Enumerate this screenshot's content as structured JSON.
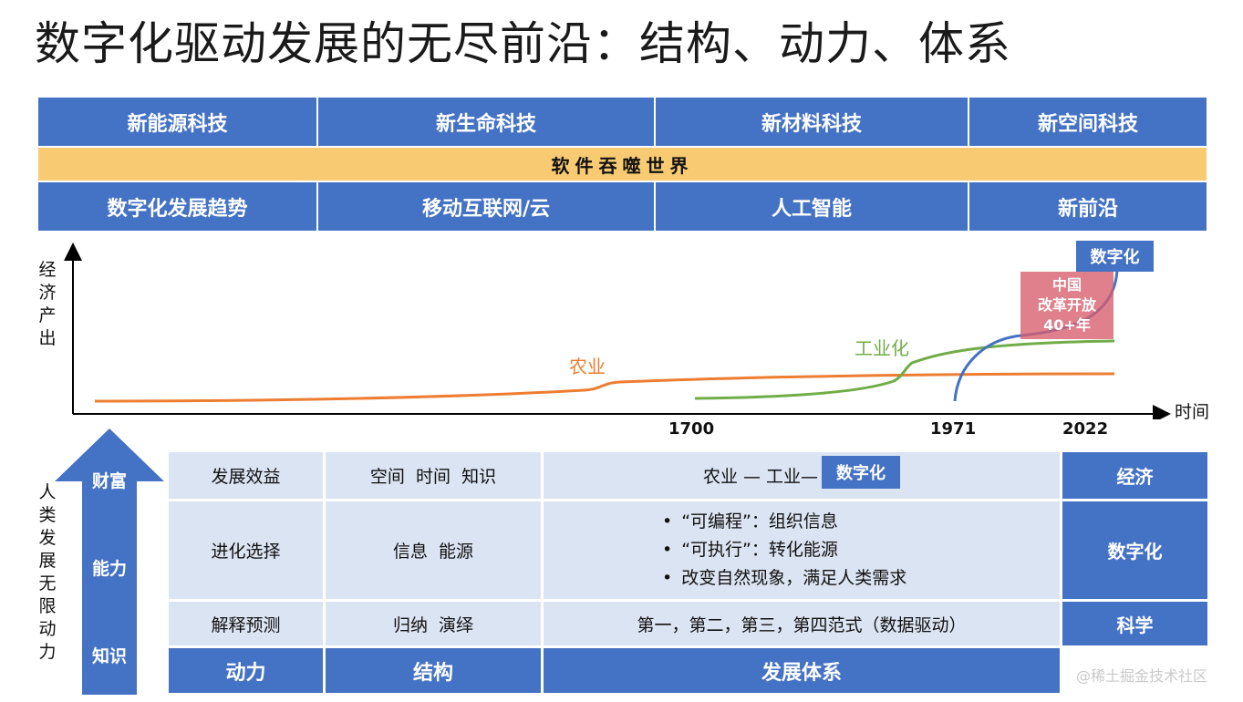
{
  "title": "数字化驱动发展的无尽前沿：结构、动力、体系",
  "top_grid": {
    "row1": [
      "新能源科技",
      "新生命科技",
      "新材料科技",
      "新空间科技"
    ],
    "banner": "软件吞噬世界",
    "row3": [
      "数字化发展趋势",
      "移动互联网/云",
      "人工智能",
      "新前沿"
    ]
  },
  "chart": {
    "ylabel_chars": [
      "经",
      "济",
      "产",
      "出"
    ],
    "xlabel": "时间",
    "ticks": [
      "1700",
      "1971",
      "2022"
    ],
    "series": [
      {
        "name": "农业",
        "color": "#ed7d31"
      },
      {
        "name": "工业化",
        "color": "#70ad47"
      },
      {
        "name": "",
        "color": "#4472c4"
      }
    ],
    "badge_digital": "数字化",
    "badge_china": [
      "中国",
      "改革开放",
      "40+年"
    ]
  },
  "left_label_chars": [
    "人",
    "类",
    "发",
    "展",
    "无",
    "限",
    "动",
    "力"
  ],
  "arrow_labels": [
    "财富",
    "能力",
    "知识"
  ],
  "table": {
    "rows": [
      {
        "label": "发展效益",
        "structure": "空间  时间  知识",
        "system": "农业 — 工业—",
        "system_badge": "数字化",
        "right": "经济"
      },
      {
        "label": "进化选择",
        "structure": "信息  能源",
        "bullets": [
          "“可编程”：组织信息",
          "“可执行”：转化能源",
          "改变自然现象，满足人类需求"
        ],
        "right": "数字化"
      },
      {
        "label": "解释预测",
        "structure": "归纳  演绎",
        "system": "第一，第二，第三，第四范式（数据驱动）",
        "right": "科学"
      }
    ],
    "footer": [
      "动力",
      "结构",
      "发展体系"
    ]
  },
  "watermark": "@稀土掘金技术社区"
}
